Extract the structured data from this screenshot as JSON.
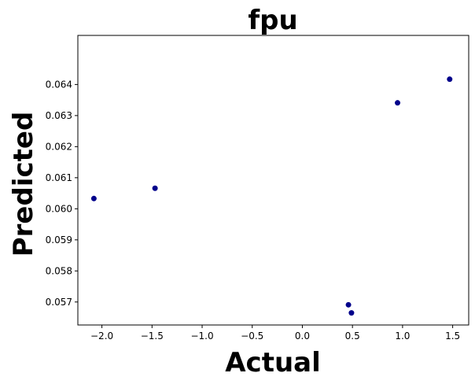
{
  "chart_data": {
    "type": "scatter",
    "title": "fpu",
    "xlabel": "Actual",
    "ylabel": "Predicted",
    "xlim": [
      -2.24,
      1.66
    ],
    "ylim": [
      0.05626,
      0.06558
    ],
    "xticks": [
      -2.0,
      -1.5,
      -1.0,
      -0.5,
      0.0,
      0.5,
      1.0,
      1.5
    ],
    "xtick_labels": [
      "−2.0",
      "−1.5",
      "−1.0",
      "−0.5",
      "0.0",
      "0.5",
      "1.0",
      "1.5"
    ],
    "yticks": [
      0.057,
      0.058,
      0.059,
      0.06,
      0.061,
      0.062,
      0.063,
      0.064
    ],
    "ytick_labels": [
      "0.057",
      "0.058",
      "0.059",
      "0.060",
      "0.061",
      "0.062",
      "0.063",
      "0.064"
    ],
    "grid": false,
    "marker_color": "#00008b",
    "points": [
      {
        "x": -2.08,
        "y": 0.06033
      },
      {
        "x": -1.47,
        "y": 0.06066
      },
      {
        "x": 0.46,
        "y": 0.05691
      },
      {
        "x": 0.49,
        "y": 0.05665
      },
      {
        "x": 0.95,
        "y": 0.06341
      },
      {
        "x": 1.47,
        "y": 0.06417
      }
    ]
  }
}
